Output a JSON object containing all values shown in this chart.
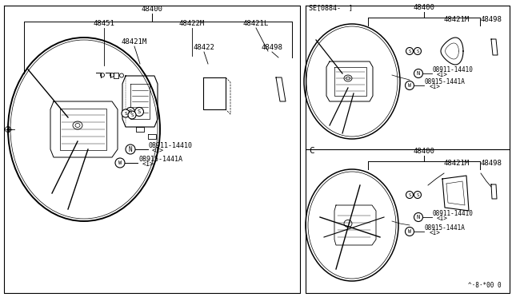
{
  "bg_color": "#ffffff",
  "line_color": "#000000",
  "text_color": "#000000",
  "fig_width": 6.4,
  "fig_height": 3.72,
  "dpi": 100,
  "watermark": "^·8·*00 0",
  "left_panel": {
    "title": "48400",
    "label_48451": "48451",
    "label_48422M": "48422M",
    "label_48421L": "48421L",
    "label_48421M": "48421M",
    "label_48422": "48422",
    "label_48498": "48498",
    "label_nut1": "N",
    "part_nut1": "08911-14410",
    "part_nut1_qty": "<1>",
    "label_nut2": "W",
    "part_nut2": "08915-1441A",
    "part_nut2_qty": "<1>"
  },
  "top_right": {
    "variant": "SE[0884-  ]",
    "title": "48400",
    "label_48421M": "48421M",
    "label_48498": "48498",
    "label_nut1": "N",
    "part_nut1": "08911-14410",
    "part_nut1_qty": "<1>",
    "label_nut2": "W",
    "part_nut2": "08915-1441A",
    "part_nut2_qty": "<1>"
  },
  "bottom_right": {
    "variant": "C",
    "title": "48400",
    "label_48421M": "48421M",
    "label_48498": "48498",
    "label_nut1": "N",
    "part_nut1": "08911-14410",
    "part_nut1_qty": "<1>",
    "label_nut2": "W",
    "part_nut2": "08915-1441A",
    "part_nut2_qty": "<1>"
  }
}
